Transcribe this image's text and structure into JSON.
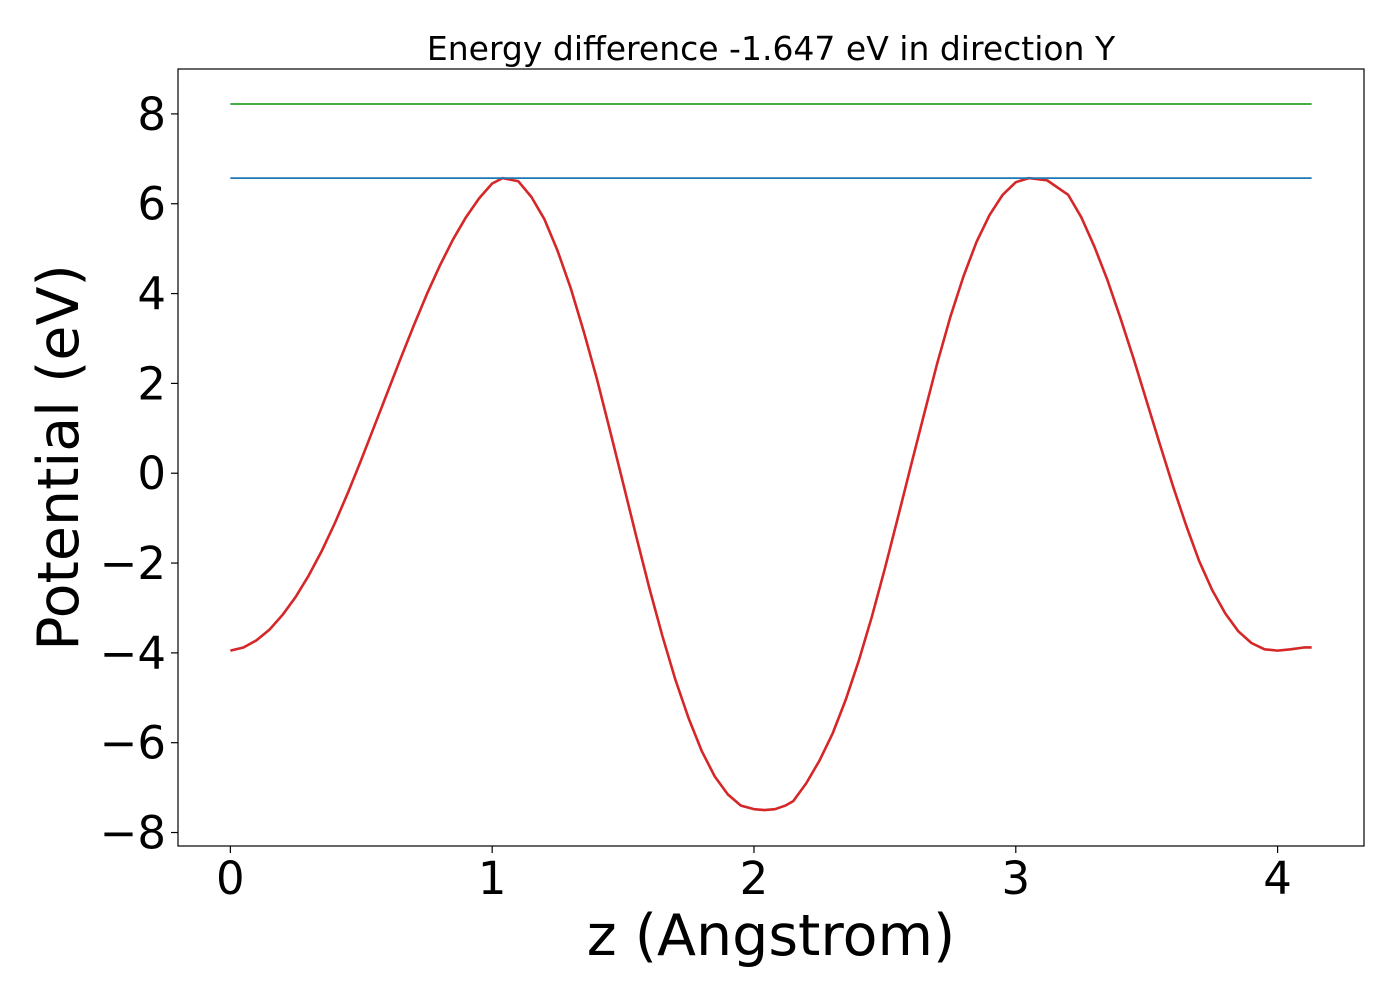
{
  "chart_data": {
    "type": "line",
    "title": "Energy difference -1.647 eV in direction Y",
    "xlabel": "z (Angstrom)",
    "ylabel": "Potential (eV)",
    "xlim": [
      -0.2,
      4.33
    ],
    "ylim": [
      -8.3,
      9.0
    ],
    "xticks": [
      0,
      1,
      2,
      3,
      4
    ],
    "xtick_labels": [
      "0",
      "1",
      "2",
      "3",
      "4"
    ],
    "yticks": [
      -8,
      -6,
      -4,
      -2,
      0,
      2,
      4,
      6,
      8
    ],
    "ytick_labels": [
      "−8",
      "−6",
      "−4",
      "−2",
      "0",
      "2",
      "4",
      "6",
      "8"
    ],
    "grid": false,
    "legend": "none",
    "series": [
      {
        "color": "#d62728",
        "x": [
          0,
          0.05,
          0.1,
          0.15,
          0.2,
          0.25,
          0.3,
          0.35,
          0.4,
          0.45,
          0.5,
          0.55,
          0.6,
          0.65,
          0.7,
          0.75,
          0.8,
          0.85,
          0.9,
          0.95,
          1.0,
          1.04,
          1.1,
          1.15,
          1.2,
          1.25,
          1.3,
          1.35,
          1.4,
          1.45,
          1.5,
          1.55,
          1.6,
          1.65,
          1.7,
          1.75,
          1.8,
          1.85,
          1.9,
          1.95,
          2.0,
          2.04,
          2.08,
          2.12,
          2.15,
          2.2,
          2.25,
          2.3,
          2.35,
          2.4,
          2.45,
          2.5,
          2.55,
          2.6,
          2.65,
          2.7,
          2.75,
          2.8,
          2.85,
          2.9,
          2.95,
          3.0,
          3.05,
          3.12,
          3.2,
          3.25,
          3.3,
          3.35,
          3.4,
          3.45,
          3.5,
          3.55,
          3.6,
          3.65,
          3.7,
          3.75,
          3.8,
          3.85,
          3.9,
          3.95,
          4.0,
          4.05,
          4.1,
          4.13
        ],
        "y": [
          -3.95,
          -3.88,
          -3.72,
          -3.48,
          -3.15,
          -2.75,
          -2.27,
          -1.72,
          -1.1,
          -0.42,
          0.3,
          1.05,
          1.8,
          2.55,
          3.28,
          3.98,
          4.62,
          5.2,
          5.7,
          6.12,
          6.45,
          6.57,
          6.5,
          6.15,
          5.65,
          4.95,
          4.12,
          3.15,
          2.1,
          0.95,
          -0.22,
          -1.4,
          -2.55,
          -3.62,
          -4.6,
          -5.45,
          -6.18,
          -6.75,
          -7.15,
          -7.4,
          -7.48,
          -7.5,
          -7.48,
          -7.4,
          -7.3,
          -6.9,
          -6.4,
          -5.8,
          -5.05,
          -4.18,
          -3.2,
          -2.12,
          -0.98,
          0.18,
          1.32,
          2.45,
          3.48,
          4.38,
          5.15,
          5.75,
          6.2,
          6.48,
          6.57,
          6.52,
          6.2,
          5.7,
          5.05,
          4.3,
          3.45,
          2.55,
          1.6,
          0.65,
          -0.28,
          -1.15,
          -1.95,
          -2.6,
          -3.12,
          -3.52,
          -3.78,
          -3.92,
          -3.95,
          -3.92,
          -3.88,
          -3.88
        ]
      },
      {
        "color": "#1f77b4",
        "x": [
          0,
          4.13
        ],
        "y": [
          6.57,
          6.57
        ]
      },
      {
        "color": "#2ca02c",
        "x": [
          0,
          4.13
        ],
        "y": [
          8.22,
          8.22
        ]
      }
    ]
  }
}
